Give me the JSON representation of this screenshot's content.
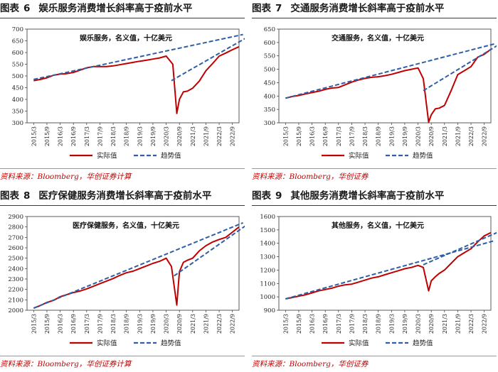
{
  "colors": {
    "actual": "#c00000",
    "trend": "#2e5fa8",
    "title_rule": "#c00000",
    "source_text": "#c00000"
  },
  "legend": {
    "actual": "实际值",
    "trend": "趋势值"
  },
  "charts": [
    {
      "fig_label": "图表",
      "fig_number": "6",
      "fig_title": "娱乐服务消费增长斜率高于疫前水平",
      "source": "资料来源：Bloomberg，华创证券计算",
      "chart_data": {
        "type": "line",
        "title": "娱乐服务，名义值，十亿美元",
        "xlabel": "",
        "ylabel": "",
        "categories": [
          "2015/3",
          "2015/9",
          "2016/3",
          "2016/9",
          "2017/3",
          "2017/9",
          "2018/3",
          "2018/9",
          "2019/3",
          "2019/9",
          "2020/3",
          "2020/9",
          "2021/3",
          "2021/9",
          "2022/3",
          "2022/9"
        ],
        "ylim": [
          300,
          700
        ],
        "yticks": [
          300,
          350,
          400,
          450,
          500,
          550,
          600,
          650,
          700
        ],
        "grid": false,
        "legend_position": "bottom",
        "series": [
          {
            "name": "实际值",
            "style": "solid",
            "x": [
              0,
              0.5,
              1,
              1.5,
              2,
              2.5,
              3,
              3.5,
              4,
              4.5,
              5,
              5.5,
              6,
              6.5,
              7,
              7.5,
              8,
              8.5,
              9,
              9.5,
              10,
              10.5,
              10.8,
              11,
              11.3,
              11.6,
              12,
              12.5,
              13,
              13.5,
              14,
              14.5,
              15,
              15.5
            ],
            "values": [
              480,
              485,
              492,
              503,
              508,
              510,
              515,
              525,
              535,
              540,
              540,
              540,
              543,
              548,
              553,
              558,
              563,
              567,
              572,
              577,
              585,
              550,
              340,
              400,
              432,
              435,
              448,
              478,
              522,
              553,
              585,
              598,
              612,
              625
            ]
          },
          {
            "name": "趋势值",
            "style": "dashed",
            "segments": [
              {
                "x": [
                  0,
                  15.8
                ],
                "values": [
                  485,
                  677
                ]
              },
              {
                "x": [
                  10.4,
                  16.2
                ],
                "values": [
                  480,
                  668
                ]
              }
            ]
          }
        ]
      }
    },
    {
      "fig_label": "图表",
      "fig_number": "7",
      "fig_title": "交通服务消费增长斜率高于疫前水平",
      "source": "资料来源：Bloomberg，华创证券",
      "chart_data": {
        "type": "line",
        "title": "交通服务，名义值，十亿美元",
        "xlabel": "",
        "ylabel": "",
        "categories": [
          "2015/3",
          "2015/9",
          "2016/3",
          "2016/9",
          "2017/3",
          "2017/9",
          "2018/3",
          "2018/9",
          "2019/3",
          "2019/9",
          "2020/3",
          "2020/9",
          "2021/3",
          "2021/9",
          "2022/3",
          "2022/9"
        ],
        "ylim": [
          300,
          650
        ],
        "yticks": [
          300,
          350,
          400,
          450,
          500,
          550,
          600,
          650
        ],
        "grid": false,
        "legend_position": "bottom",
        "series": [
          {
            "name": "实际值",
            "style": "solid",
            "x": [
              0,
              0.5,
              1,
              1.5,
              2,
              2.5,
              3,
              3.5,
              4,
              4.5,
              5,
              5.5,
              6,
              6.5,
              7,
              7.5,
              8,
              8.5,
              9,
              9.5,
              10,
              10.4,
              10.8,
              11,
              11.3,
              11.6,
              12,
              12.5,
              13,
              13.5,
              14,
              14.5,
              15,
              15.5
            ],
            "values": [
              392,
              398,
              402,
              408,
              413,
              418,
              425,
              430,
              432,
              442,
              452,
              460,
              466,
              470,
              472,
              476,
              481,
              488,
              495,
              500,
              505,
              465,
              302,
              330,
              352,
              355,
              365,
              420,
              480,
              495,
              510,
              545,
              556,
              575
            ]
          },
          {
            "name": "趋势值",
            "style": "dashed",
            "segments": [
              {
                "x": [
                  0,
                  15.8
                ],
                "values": [
                  392,
                  595
                ]
              },
              {
                "x": [
                  10.4,
                  16.2
                ],
                "values": [
                  420,
                  595
                ]
              }
            ]
          }
        ]
      }
    },
    {
      "fig_label": "图表",
      "fig_number": "8",
      "fig_title": "医疗保健服务消费增长斜率高于疫前水平",
      "source": "资料来源：Bloomberg，华创证券计算",
      "chart_data": {
        "type": "line",
        "title": "医疗保健服务，名义值，十亿美元",
        "xlabel": "",
        "ylabel": "",
        "categories": [
          "2015/3",
          "2015/9",
          "2016/3",
          "2016/9",
          "2017/3",
          "2017/9",
          "2018/3",
          "2018/9",
          "2019/3",
          "2019/9",
          "2020/3",
          "2020/9",
          "2021/3",
          "2021/9",
          "2022/3",
          "2022/9"
        ],
        "ylim": [
          2000,
          2900
        ],
        "yticks": [
          2000,
          2100,
          2200,
          2300,
          2400,
          2500,
          2600,
          2700,
          2800,
          2900
        ],
        "grid": false,
        "legend_position": "bottom",
        "series": [
          {
            "name": "实际值",
            "style": "solid",
            "x": [
              0,
              0.5,
              1,
              1.5,
              2,
              2.5,
              3,
              3.5,
              4,
              4.5,
              5,
              5.5,
              6,
              6.5,
              7,
              7.5,
              8,
              8.5,
              9,
              9.5,
              10,
              10.4,
              10.8,
              11,
              11.3,
              11.6,
              12,
              12.5,
              13,
              13.5,
              14,
              14.5,
              15,
              15.5
            ],
            "values": [
              2020,
              2045,
              2075,
              2095,
              2130,
              2150,
              2170,
              2185,
              2205,
              2230,
              2255,
              2280,
              2305,
              2335,
              2360,
              2375,
              2400,
              2425,
              2450,
              2470,
              2500,
              2420,
              2050,
              2370,
              2460,
              2480,
              2500,
              2570,
              2620,
              2655,
              2680,
              2700,
              2750,
              2800
            ]
          },
          {
            "name": "趋势值",
            "style": "dashed",
            "segments": [
              {
                "x": [
                  0,
                  15.8
                ],
                "values": [
                  2020,
                  2840
                ]
              },
              {
                "x": [
                  10.6,
                  16.2
                ],
                "values": [
                  2330,
                  2830
                ]
              }
            ]
          }
        ]
      }
    },
    {
      "fig_label": "图表",
      "fig_number": "9",
      "fig_title": "其他服务消费增长斜率高于疫前水平",
      "source": "资料来源：Bloomberg，华创证券",
      "chart_data": {
        "type": "line",
        "title": "其他服务，名义值，十亿美元",
        "xlabel": "",
        "ylabel": "",
        "categories": [
          "2015/3",
          "2015/9",
          "2016/3",
          "2016/9",
          "2017/3",
          "2017/9",
          "2018/3",
          "2018/9",
          "2019/3",
          "2019/9",
          "2020/3",
          "2020/9",
          "2021/3",
          "2021/9",
          "2022/3",
          "2022/9"
        ],
        "ylim": [
          900,
          1600
        ],
        "yticks": [
          900,
          1000,
          1100,
          1200,
          1300,
          1400,
          1500,
          1600
        ],
        "grid": false,
        "legend_position": "bottom",
        "series": [
          {
            "name": "实际值",
            "style": "solid",
            "x": [
              0,
              0.5,
              1,
              1.5,
              2,
              2.5,
              3,
              3.5,
              4,
              4.5,
              5,
              5.5,
              6,
              6.5,
              7,
              7.5,
              8,
              8.5,
              9,
              9.5,
              10,
              10.4,
              10.8,
              11,
              11.3,
              11.6,
              12,
              12.5,
              13,
              13.5,
              14,
              14.5,
              15,
              15.5
            ],
            "values": [
              985,
              995,
              1005,
              1015,
              1030,
              1045,
              1055,
              1065,
              1080,
              1090,
              1095,
              1110,
              1125,
              1140,
              1150,
              1165,
              1180,
              1195,
              1210,
              1220,
              1235,
              1220,
              1045,
              1120,
              1150,
              1175,
              1200,
              1250,
              1300,
              1330,
              1360,
              1410,
              1455,
              1480
            ]
          },
          {
            "name": "趋势值",
            "style": "dashed",
            "segments": [
              {
                "x": [
                  0,
                  15.8
                ],
                "values": [
                  985,
                  1420
                ]
              },
              {
                "x": [
                  10.4,
                  16.2
                ],
                "values": [
                  1240,
                  1490
                ]
              }
            ]
          }
        ]
      }
    }
  ]
}
